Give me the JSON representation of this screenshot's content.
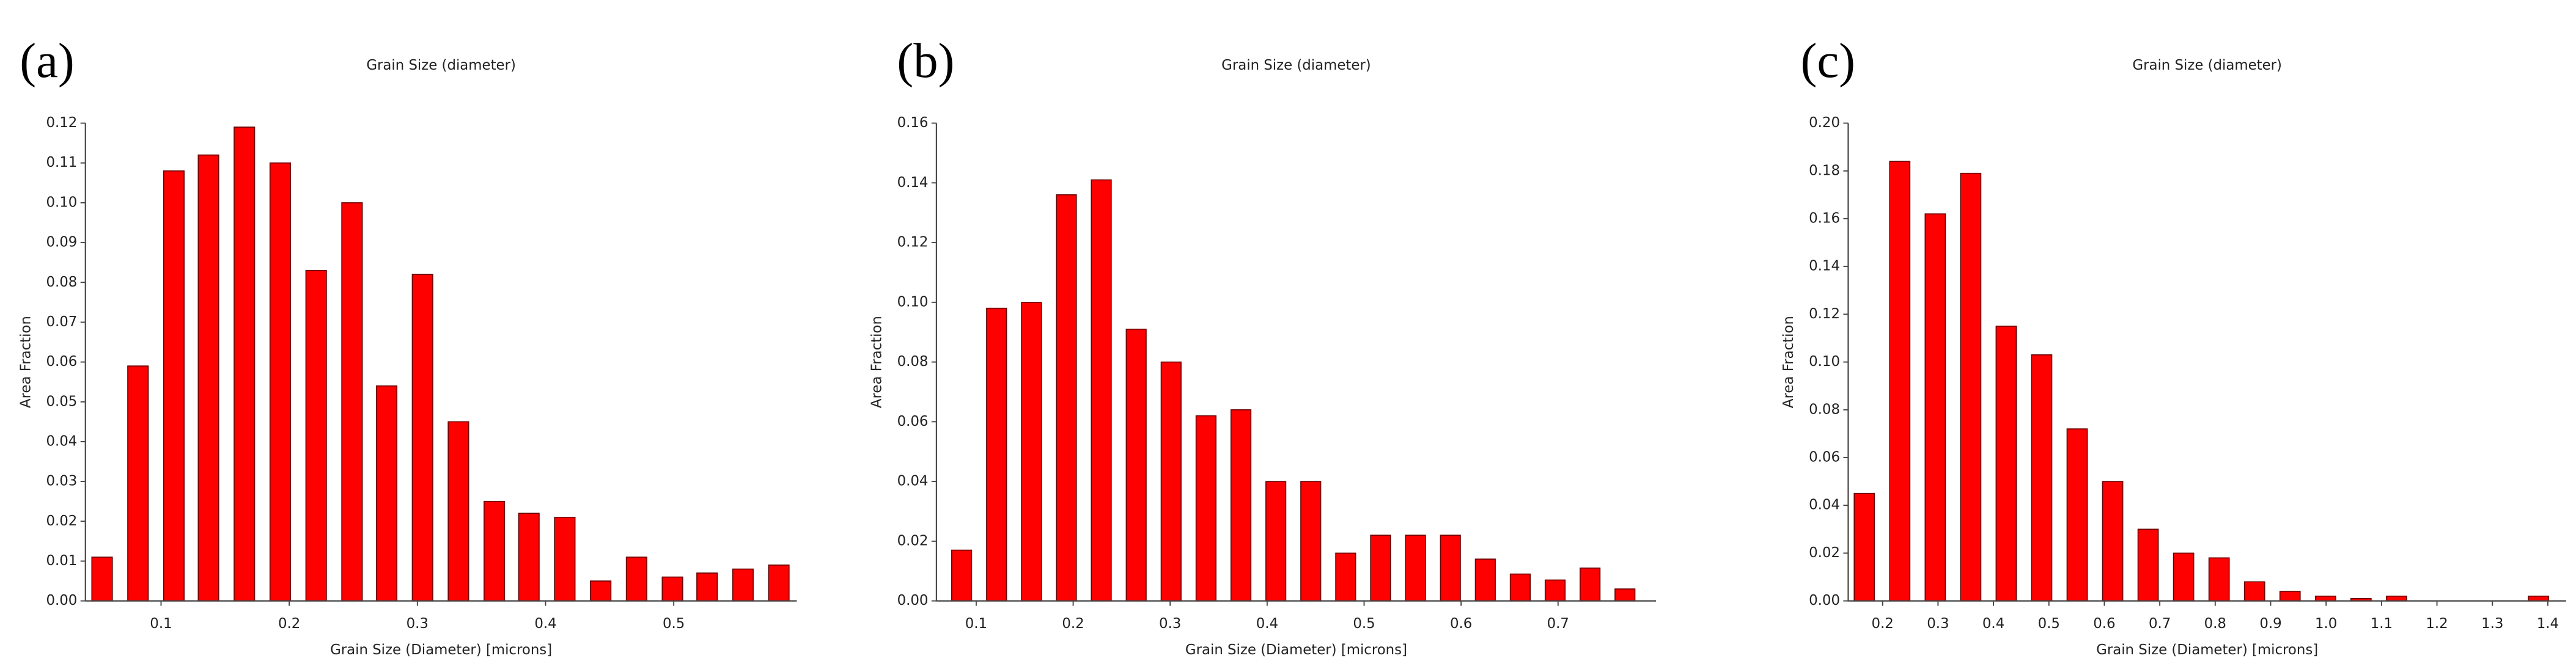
{
  "chart_data": [
    {
      "type": "bar",
      "panel": "(a)",
      "title": "Grain Size (diameter)",
      "x_label": "Grain Size (Diameter) [microns]",
      "y_label": "Area Fraction",
      "color": "#ff0000",
      "x": [
        0.054,
        0.082,
        0.11,
        0.137,
        0.165,
        0.193,
        0.221,
        0.249,
        0.276,
        0.304,
        0.332,
        0.36,
        0.387,
        0.415,
        0.443,
        0.471,
        0.499,
        0.526,
        0.554,
        0.582
      ],
      "values": [
        0.011,
        0.059,
        0.108,
        0.112,
        0.119,
        0.11,
        0.083,
        0.1,
        0.054,
        0.082,
        0.045,
        0.025,
        0.022,
        0.021,
        0.005,
        0.011,
        0.006,
        0.007,
        0.008,
        0.009
      ],
      "xlim": [
        0.041,
        0.596
      ],
      "xticks": [
        0.1,
        0.2,
        0.3,
        0.4,
        0.5
      ],
      "ylim": [
        0,
        0.12
      ],
      "yticks": [
        {
          "value": 0,
          "label": "0.00"
        },
        {
          "value": 0.01,
          "label": "0.01"
        },
        {
          "value": 0.02,
          "label": "0.02"
        },
        {
          "value": 0.03,
          "label": "0.03"
        },
        {
          "value": 0.04,
          "label": "0.04"
        },
        {
          "value": 0.05,
          "label": "0.05"
        },
        {
          "value": 0.06,
          "label": "0.06"
        },
        {
          "value": 0.07,
          "label": "0.07"
        },
        {
          "value": 0.08,
          "label": "0.08"
        },
        {
          "value": 0.09,
          "label": "0.09"
        },
        {
          "value": 0.1,
          "label": "0.10"
        },
        {
          "value": 0.11,
          "label": "0.11"
        },
        {
          "value": 0.12,
          "label": "0.12"
        }
      ]
    },
    {
      "type": "bar",
      "panel": "(b)",
      "title": "Grain Size (diameter)",
      "x_label": "Grain Size (Diameter) [microns]",
      "y_label": "Area Fraction",
      "color": "#ff0000",
      "x": [
        0.085,
        0.121,
        0.157,
        0.193,
        0.229,
        0.265,
        0.301,
        0.337,
        0.373,
        0.409,
        0.445,
        0.481,
        0.517,
        0.553,
        0.589,
        0.625,
        0.661,
        0.697,
        0.733,
        0.769
      ],
      "values": [
        0.017,
        0.098,
        0.1,
        0.136,
        0.141,
        0.091,
        0.08,
        0.062,
        0.064,
        0.04,
        0.04,
        0.016,
        0.022,
        0.022,
        0.022,
        0.014,
        0.009,
        0.007,
        0.011,
        0.004
      ],
      "xlim": [
        0.059,
        0.801
      ],
      "xticks": [
        0.1,
        0.2,
        0.3,
        0.4,
        0.5,
        0.6,
        0.7
      ],
      "ylim": [
        0,
        0.16
      ],
      "yticks": [
        {
          "value": 0,
          "label": "0.00"
        },
        {
          "value": 0.02,
          "label": "0.02"
        },
        {
          "value": 0.04,
          "label": "0.04"
        },
        {
          "value": 0.06,
          "label": "0.06"
        },
        {
          "value": 0.08,
          "label": "0.08"
        },
        {
          "value": 0.1,
          "label": "0.10"
        },
        {
          "value": 0.12,
          "label": "0.12"
        },
        {
          "value": 0.14,
          "label": "0.14"
        },
        {
          "value": 0.16,
          "label": "0.16"
        }
      ]
    },
    {
      "type": "bar",
      "panel": "(c)",
      "title": "Grain Size (diameter)",
      "x_label": "Grain Size (Diameter) [microns]",
      "y_label": "Area Fraction",
      "color": "#ff0000",
      "x": [
        0.167,
        0.231,
        0.295,
        0.359,
        0.423,
        0.487,
        0.551,
        0.615,
        0.679,
        0.743,
        0.807,
        0.871,
        0.935,
        0.999,
        1.063,
        1.127,
        1.191,
        1.255,
        1.319,
        1.383
      ],
      "values": [
        0.045,
        0.184,
        0.162,
        0.179,
        0.115,
        0.103,
        0.072,
        0.05,
        0.03,
        0.02,
        0.018,
        0.008,
        0.004,
        0.002,
        0.001,
        0.002,
        0,
        0,
        0,
        0.002
      ],
      "xlim": [
        0.138,
        1.433
      ],
      "xticks": [
        0.2,
        0.3,
        0.4,
        0.5,
        0.6,
        0.7,
        0.8,
        0.9,
        {
          "value": 1,
          "label": "1.0"
        },
        1.1,
        1.2,
        1.3,
        1.4
      ],
      "ylim": [
        0,
        0.2
      ],
      "yticks": [
        {
          "value": 0,
          "label": "0.00"
        },
        {
          "value": 0.02,
          "label": "0.02"
        },
        {
          "value": 0.04,
          "label": "0.04"
        },
        {
          "value": 0.06,
          "label": "0.06"
        },
        {
          "value": 0.08,
          "label": "0.08"
        },
        {
          "value": 0.1,
          "label": "0.10"
        },
        {
          "value": 0.12,
          "label": "0.12"
        },
        {
          "value": 0.14,
          "label": "0.14"
        },
        {
          "value": 0.16,
          "label": "0.16"
        },
        {
          "value": 0.18,
          "label": "0.18"
        },
        {
          "value": 0.2,
          "label": "0.20"
        }
      ]
    }
  ]
}
